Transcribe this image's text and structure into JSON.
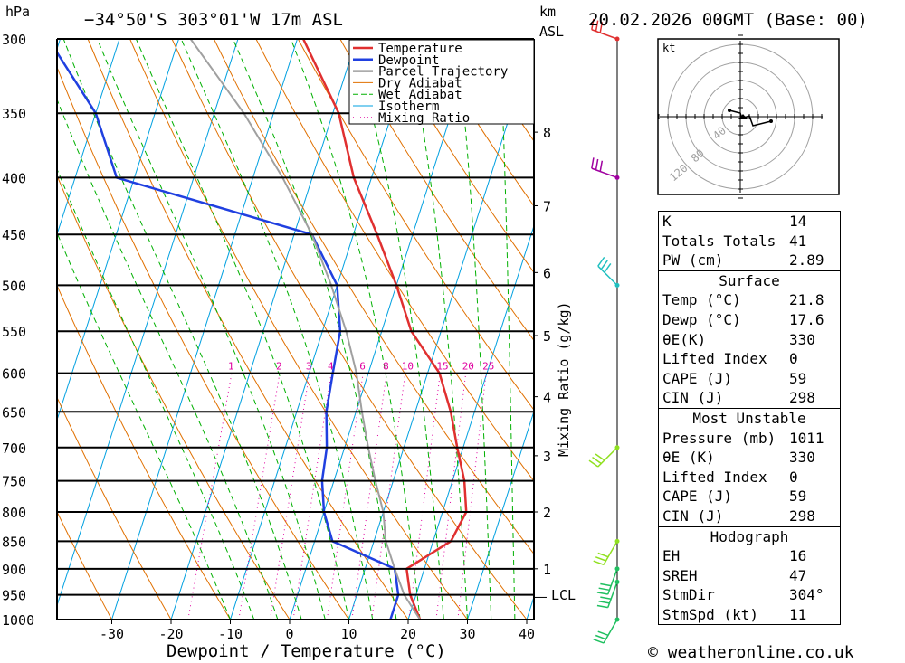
{
  "header": {
    "location": "−34°50'S  303°01'W  17m  ASL",
    "datetime": "20.02.2026  00GMT  (Base: 00)",
    "unit_hpa": "hPa",
    "unit_km": "km",
    "unit_asl": "ASL",
    "mixing_ratio_label": "Mixing Ratio (g/kg)",
    "lcl_label": "LCL"
  },
  "chart_data": {
    "type": "line",
    "title": "Skew-T log-P sounding",
    "xlabel": "Dewpoint / Temperature (°C)",
    "ylabel": "hPa",
    "pressure_levels": [
      300,
      350,
      400,
      450,
      500,
      550,
      600,
      650,
      700,
      750,
      800,
      850,
      900,
      950,
      1000
    ],
    "x_ticks": [
      -30,
      -20,
      -10,
      0,
      10,
      20,
      30,
      40
    ],
    "km_ticks": [
      {
        "label": "8",
        "p": 364
      },
      {
        "label": "7",
        "p": 424
      },
      {
        "label": "6",
        "p": 487
      },
      {
        "label": "5",
        "p": 555
      },
      {
        "label": "4",
        "p": 630
      },
      {
        "label": "3",
        "p": 712
      },
      {
        "label": "2",
        "p": 800
      },
      {
        "label": "1",
        "p": 900
      }
    ],
    "mixing_ratio_labels": [
      "1",
      "2",
      "3",
      "4",
      "6",
      "8",
      "10",
      "15",
      "20",
      "25"
    ],
    "legend": [
      "Temperature",
      "Dewpoint",
      "Parcel Trajectory",
      "Dry Adiabat",
      "Wet Adiabat",
      "Isotherm",
      "Mixing Ratio"
    ],
    "legend_position": "top",
    "colors": {
      "temperature": "#e03030",
      "dewpoint": "#2040e0",
      "parcel": "#a0a0a0",
      "dry_adiabat": "#e07000",
      "wet_adiabat": "#00b000",
      "isotherm": "#00a0e0",
      "mixing_ratio": "#e000a0"
    },
    "series": [
      {
        "name": "Temperature",
        "points": [
          [
            22,
            1000
          ],
          [
            19,
            950
          ],
          [
            17,
            900
          ],
          [
            23,
            850
          ],
          [
            24,
            800
          ],
          [
            22,
            750
          ],
          [
            19,
            700
          ],
          [
            16,
            650
          ],
          [
            12,
            600
          ],
          [
            5,
            550
          ],
          [
            0,
            500
          ],
          [
            -6,
            450
          ],
          [
            -13,
            400
          ],
          [
            -19,
            350
          ],
          [
            -29,
            300
          ]
        ]
      },
      {
        "name": "Dewpoint",
        "points": [
          [
            17,
            1000
          ],
          [
            17,
            950
          ],
          [
            15,
            900
          ],
          [
            3,
            850
          ],
          [
            0,
            800
          ],
          [
            -2,
            750
          ],
          [
            -3,
            700
          ],
          [
            -5,
            650
          ],
          [
            -6,
            600
          ],
          [
            -7,
            550
          ],
          [
            -10,
            500
          ],
          [
            -17,
            450
          ],
          [
            -53,
            400
          ],
          [
            -60,
            350
          ],
          [
            -72,
            300
          ]
        ]
      },
      {
        "name": "Parcel Trajectory",
        "points": [
          [
            22,
            1000
          ],
          [
            18,
            950
          ],
          [
            15,
            900
          ],
          [
            12,
            850
          ],
          [
            10,
            800
          ],
          [
            7,
            750
          ],
          [
            4,
            700
          ],
          [
            1,
            650
          ],
          [
            -2,
            600
          ],
          [
            -6,
            550
          ],
          [
            -11,
            500
          ],
          [
            -17,
            450
          ],
          [
            -25,
            400
          ],
          [
            -35,
            350
          ],
          [
            -48,
            300
          ]
        ]
      }
    ],
    "lcl_pressure": 955
  },
  "hodograph": {
    "unit": "kt",
    "ring_labels": [
      "40",
      "80",
      "120"
    ]
  },
  "table": {
    "indices": [
      {
        "label": "K",
        "value": "14"
      },
      {
        "label": "Totals Totals",
        "value": "41"
      },
      {
        "label": "PW (cm)",
        "value": "2.89"
      }
    ],
    "surface": {
      "title": "Surface",
      "rows": [
        {
          "label": "Temp (°C)",
          "value": "21.8"
        },
        {
          "label": "Dewp (°C)",
          "value": "17.6"
        },
        {
          "label": "θE(K)",
          "value": "330"
        },
        {
          "label": "Lifted Index",
          "value": "0"
        },
        {
          "label": "CAPE (J)",
          "value": "59"
        },
        {
          "label": "CIN (J)",
          "value": "298"
        }
      ]
    },
    "most_unstable": {
      "title": "Most Unstable",
      "rows": [
        {
          "label": "Pressure (mb)",
          "value": "1011"
        },
        {
          "label": "θE (K)",
          "value": "330"
        },
        {
          "label": "Lifted Index",
          "value": "0"
        },
        {
          "label": "CAPE (J)",
          "value": "59"
        },
        {
          "label": "CIN (J)",
          "value": "298"
        }
      ]
    },
    "hodograph": {
      "title": "Hodograph",
      "rows": [
        {
          "label": "EH",
          "value": "16"
        },
        {
          "label": "SREH",
          "value": "47"
        },
        {
          "label": "StmDir",
          "value": "304°"
        },
        {
          "label": "StmSpd (kt)",
          "value": "11"
        }
      ]
    }
  },
  "footer": {
    "copyright": "© weatheronline.co.uk"
  }
}
